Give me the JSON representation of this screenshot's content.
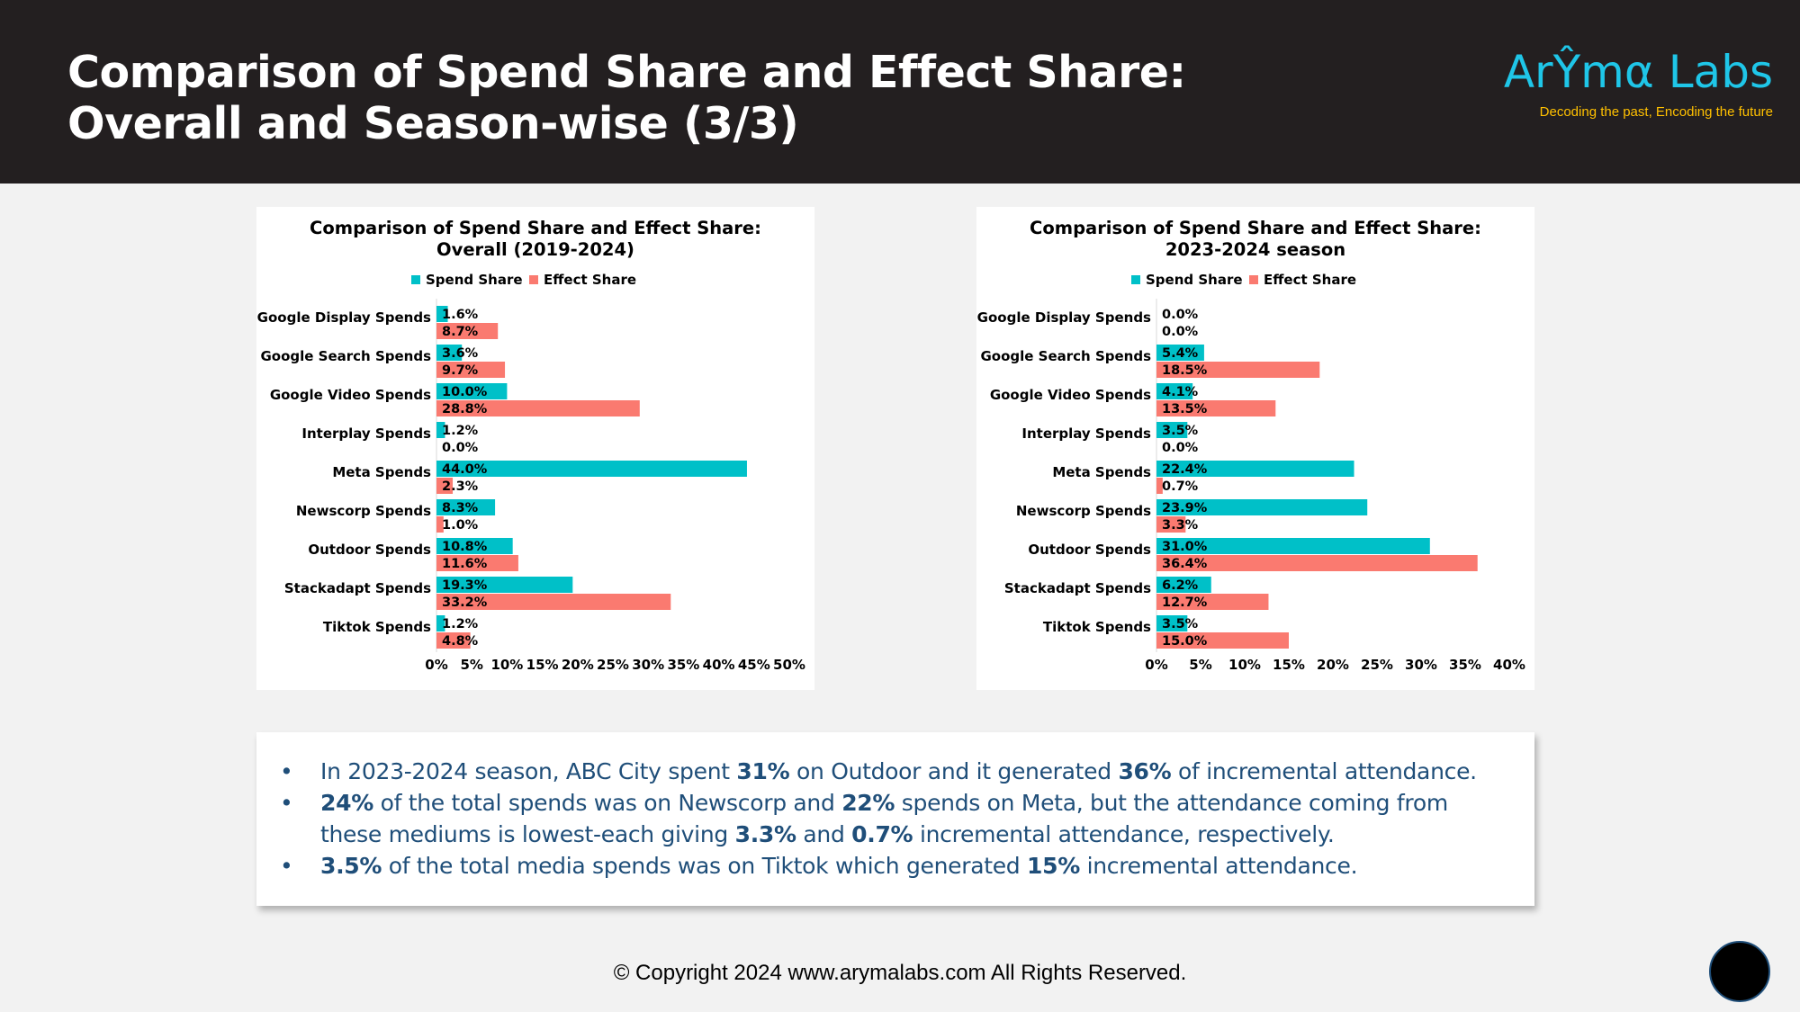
{
  "header": {
    "title_line1": "Comparison of Spend Share and Effect Share:",
    "title_line2": "Overall and Season-wise (3/3)",
    "logo_name": "ArŶmα Labs",
    "logo_tagline": "Decoding the past, Encoding the future"
  },
  "colors": {
    "spend": "#00c0c8",
    "effect": "#fa7a70",
    "header_bg": "#231f20",
    "logo": "#1fc6e8",
    "tagline": "#ffc000",
    "bullet_text": "#1f4e79"
  },
  "chart_data": [
    {
      "type": "bar",
      "orientation": "horizontal",
      "title": [
        "Comparison of Spend Share and Effect Share:",
        "Overall (2019-2024)"
      ],
      "categories": [
        "Google Display Spends",
        "Google Search Spends",
        "Google Video Spends",
        "Interplay Spends",
        "Meta Spends",
        "Newscorp Spends",
        "Outdoor Spends",
        "Stackadapt Spends",
        "Tiktok Spends"
      ],
      "series": [
        {
          "name": "Spend Share",
          "values": [
            1.6,
            3.6,
            10.0,
            1.2,
            44.0,
            8.3,
            10.8,
            19.3,
            1.2
          ],
          "labels": [
            "1.6%",
            "3.6%",
            "10.0%",
            "1.2%",
            "44.0%",
            "8.3%",
            "10.8%",
            "19.3%",
            "1.2%"
          ]
        },
        {
          "name": "Effect Share",
          "values": [
            8.7,
            9.7,
            28.8,
            0.0,
            2.3,
            1.0,
            11.6,
            33.2,
            4.8
          ],
          "labels": [
            "8.7%",
            "9.7%",
            "28.8%",
            "0.0%",
            "2.3%",
            "1.0%",
            "11.6%",
            "33.2%",
            "4.8%"
          ]
        }
      ],
      "xlim": [
        0,
        50
      ],
      "xticks": [
        "0%",
        "5%",
        "10%",
        "15%",
        "20%",
        "25%",
        "30%",
        "35%",
        "40%",
        "45%",
        "50%"
      ],
      "legend": "top",
      "grid": false
    },
    {
      "type": "bar",
      "orientation": "horizontal",
      "title": [
        "Comparison of Spend Share and Effect Share:",
        "2023-2024 season"
      ],
      "categories": [
        "Google Display Spends",
        "Google Search Spends",
        "Google Video Spends",
        "Interplay Spends",
        "Meta Spends",
        "Newscorp Spends",
        "Outdoor Spends",
        "Stackadapt Spends",
        "Tiktok Spends"
      ],
      "series": [
        {
          "name": "Spend Share",
          "values": [
            0.0,
            5.4,
            4.1,
            3.5,
            22.4,
            23.9,
            31.0,
            6.2,
            3.5
          ],
          "labels": [
            "0.0%",
            "5.4%",
            "4.1%",
            "3.5%",
            "22.4%",
            "23.9%",
            "31.0%",
            "6.2%",
            "3.5%"
          ]
        },
        {
          "name": "Effect Share",
          "values": [
            0.0,
            18.5,
            13.5,
            0.0,
            0.7,
            3.3,
            36.4,
            12.7,
            15.0
          ],
          "labels": [
            "0.0%",
            "18.5%",
            "13.5%",
            "0.0%",
            "0.7%",
            "3.3%",
            "36.4%",
            "12.7%",
            "15.0%"
          ]
        }
      ],
      "xlim": [
        0,
        40
      ],
      "xticks": [
        "0%",
        "5%",
        "10%",
        "15%",
        "20%",
        "25%",
        "30%",
        "35%",
        "40%"
      ],
      "legend": "top",
      "grid": false
    }
  ],
  "bullets": [
    [
      {
        "t": "In 2023-2024 season, ABC City spent ",
        "b": false
      },
      {
        "t": "31%",
        "b": true
      },
      {
        "t": " on Outdoor and it generated ",
        "b": false
      },
      {
        "t": "36%",
        "b": true
      },
      {
        "t": " of incremental attendance.",
        "b": false
      }
    ],
    [
      {
        "t": "24%",
        "b": true
      },
      {
        "t": " of the total spends was on Newscorp and ",
        "b": false
      },
      {
        "t": "22%",
        "b": true
      },
      {
        "t": " spends on Meta, but the attendance coming from these mediums is lowest-each giving ",
        "b": false
      },
      {
        "t": "3.3%",
        "b": true
      },
      {
        "t": " and ",
        "b": false
      },
      {
        "t": "0.7%",
        "b": true
      },
      {
        "t": " incremental attendance, respectively.",
        "b": false
      }
    ],
    [
      {
        "t": "3.5%",
        "b": true
      },
      {
        "t": " of the total media spends was on Tiktok which generated ",
        "b": false
      },
      {
        "t": "15%",
        "b": true
      },
      {
        "t": " incremental attendance.",
        "b": false
      }
    ]
  ],
  "bullet_symbol": "•",
  "footer": {
    "copyright": "© Copyright 2024 www.arymalabs.com All Rights Reserved."
  }
}
